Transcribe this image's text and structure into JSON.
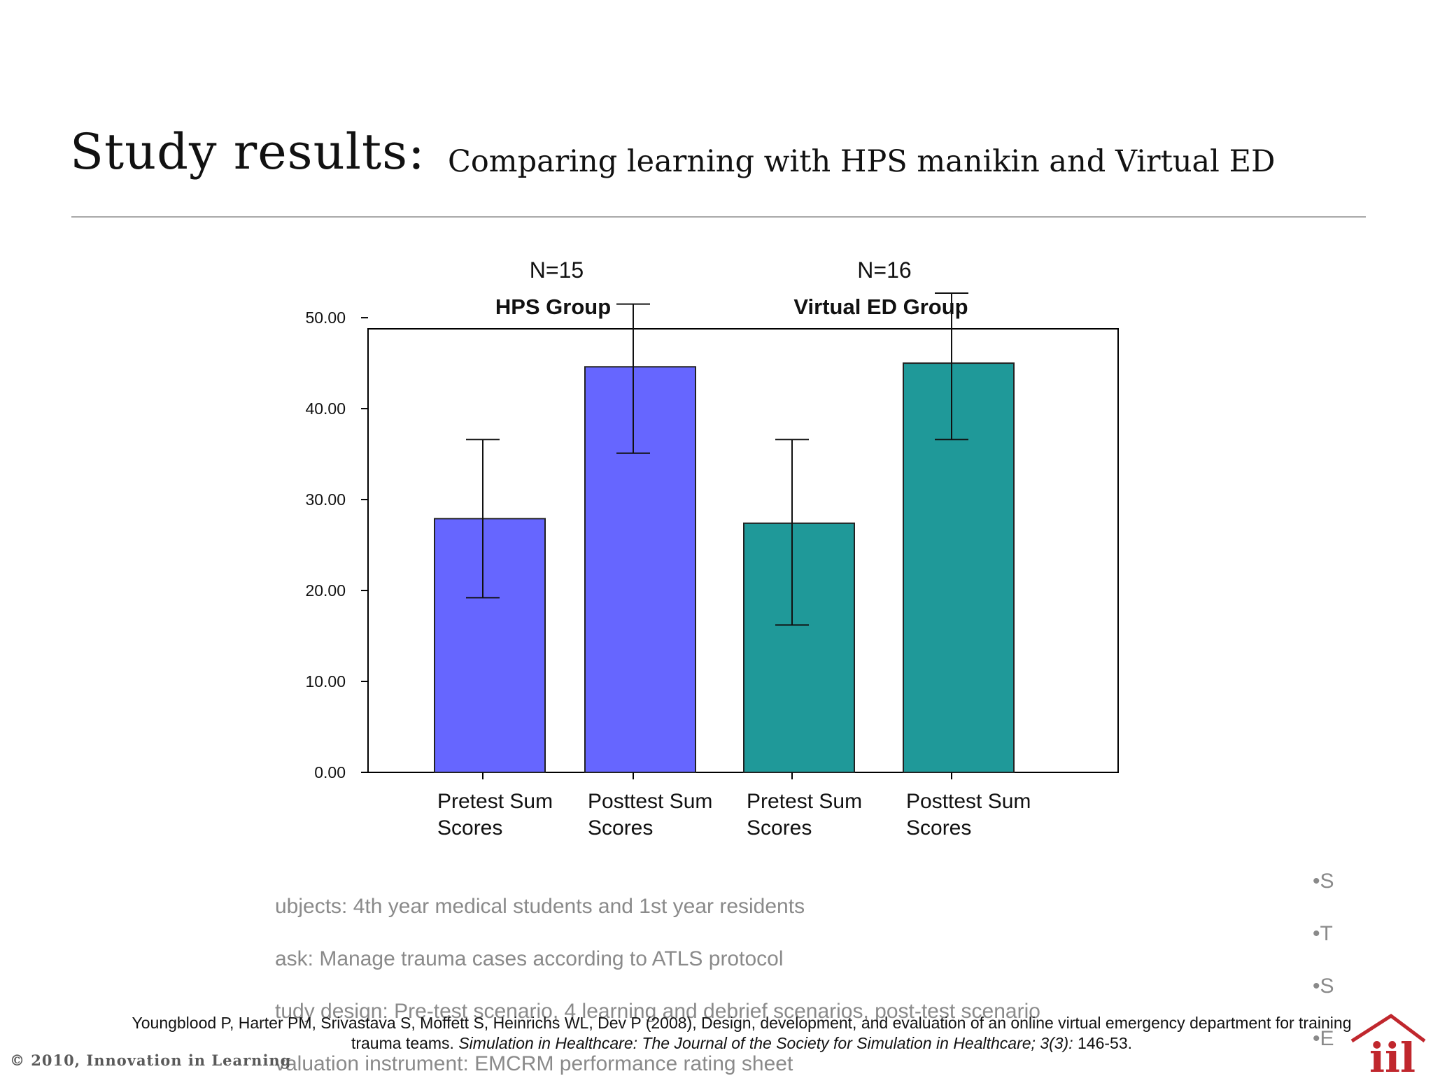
{
  "slide": {
    "title": "Study results:",
    "subtitle": "Comparing learning with HPS manikin and Virtual ED"
  },
  "chart_data": {
    "type": "bar",
    "groups": [
      {
        "n_label": "N=15",
        "name": "HPS Group",
        "color": "#6666ff"
      },
      {
        "n_label": "N=16",
        "name": "Virtual ED Group",
        "color": "#1f9999"
      }
    ],
    "categories": [
      "Pretest Sum Scores",
      "Posttest Sum Scores",
      "Pretest Sum Scores",
      "Posttest Sum Scores"
    ],
    "category_lines": [
      [
        "Pretest Sum",
        "Scores"
      ],
      [
        "Posttest Sum",
        "Scores"
      ],
      [
        "Pretest Sum",
        "Scores"
      ],
      [
        "Posttest Sum",
        "Scores"
      ]
    ],
    "bar_group": [
      0,
      0,
      1,
      1
    ],
    "values": [
      27.9,
      44.6,
      27.4,
      45.0
    ],
    "error_low": [
      19.2,
      35.1,
      16.2,
      36.6
    ],
    "error_high": [
      36.6,
      51.5,
      36.6,
      52.7
    ],
    "yticks": [
      "0.00",
      "10.00",
      "20.00",
      "30.00",
      "40.00",
      "50.00"
    ],
    "ylim": [
      0,
      52.7
    ],
    "grid": false
  },
  "bullets": [
    "ubjects:  4th year medical students and 1st year residents",
    "ask:  Manage trauma cases according to ATLS protocol",
    "tudy design:  Pre-test scenario, 4 learning and debrief scenarios, post-test scenario",
    "valuation instrument:  EMCRM performance rating sheet"
  ],
  "right_bullets": [
    "•S",
    "•T",
    "•S",
    "•E"
  ],
  "citation": {
    "before": "Youngblood P, Harter PM, Srivastava S, Moffett S, Heinrichs WL, Dev P (2008), Design, development, and evaluation of an online virtual emergency department for training trauma teams. ",
    "journal": "Simulation in Healthcare: The Journal of the Society for Simulation in Healthcare; 3(3):",
    "after": " 146-53."
  },
  "footer": {
    "copyright": "© 2010, Innovation in Learning",
    "logo_text": "iil",
    "logo_color": "#c0272d"
  }
}
